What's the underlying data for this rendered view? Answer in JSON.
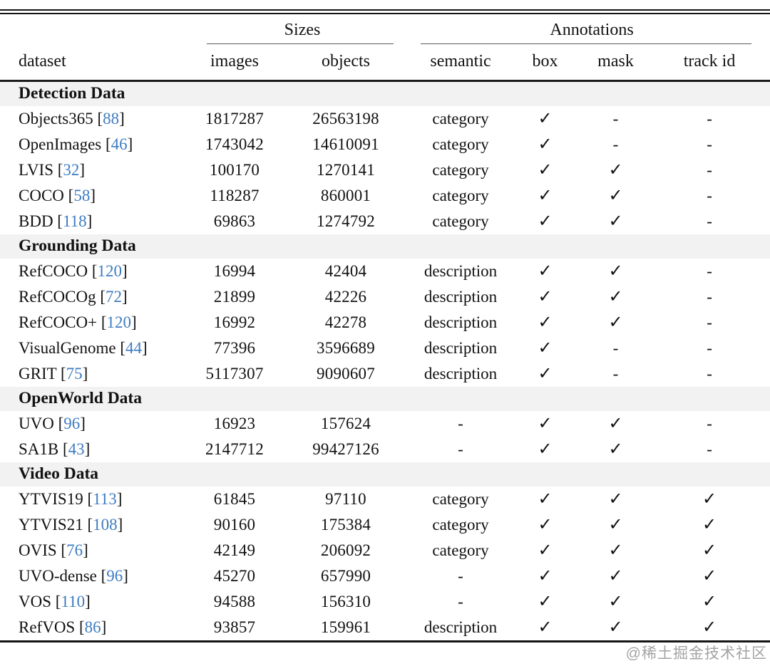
{
  "colors": {
    "ref_link": "#3e7cc1",
    "section_bg": "#f2f2f2",
    "rule_dark": "#141414",
    "rule_mid": "#5a5a5a",
    "watermark_gray": "#a3a3a3"
  },
  "glyphs": {
    "check": "✓",
    "dash": "-",
    "bracket_open": "[",
    "bracket_close": "]"
  },
  "table": {
    "spanners": {
      "sizes": "Sizes",
      "annotations": "Annotations"
    },
    "headers": {
      "dataset": "dataset",
      "images": "images",
      "objects": "objects",
      "semantic": "semantic",
      "box": "box",
      "mask": "mask",
      "track_id": "track id"
    },
    "sections": [
      {
        "title": "Detection Data",
        "rows": [
          {
            "name": "Objects365",
            "ref": "88",
            "images": "1817287",
            "objects": "26563198",
            "semantic": "category",
            "box": "✓",
            "mask": "-",
            "track_id": "-"
          },
          {
            "name": "OpenImages",
            "ref": "46",
            "images": "1743042",
            "objects": "14610091",
            "semantic": "category",
            "box": "✓",
            "mask": "-",
            "track_id": "-"
          },
          {
            "name": "LVIS",
            "ref": "32",
            "images": "100170",
            "objects": "1270141",
            "semantic": "category",
            "box": "✓",
            "mask": "✓",
            "track_id": "-"
          },
          {
            "name": "COCO",
            "ref": "58",
            "images": "118287",
            "objects": "860001",
            "semantic": "category",
            "box": "✓",
            "mask": "✓",
            "track_id": "-"
          },
          {
            "name": "BDD",
            "ref": "118",
            "images": "69863",
            "objects": "1274792",
            "semantic": "category",
            "box": "✓",
            "mask": "✓",
            "track_id": "-"
          }
        ]
      },
      {
        "title": "Grounding Data",
        "rows": [
          {
            "name": "RefCOCO",
            "ref": "120",
            "images": "16994",
            "objects": "42404",
            "semantic": "description",
            "box": "✓",
            "mask": "✓",
            "track_id": "-"
          },
          {
            "name": "RefCOCOg",
            "ref": "72",
            "images": "21899",
            "objects": "42226",
            "semantic": "description",
            "box": "✓",
            "mask": "✓",
            "track_id": "-"
          },
          {
            "name": "RefCOCO+",
            "ref": "120",
            "images": "16992",
            "objects": "42278",
            "semantic": "description",
            "box": "✓",
            "mask": "✓",
            "track_id": "-"
          },
          {
            "name": "VisualGenome",
            "ref": "44",
            "images": "77396",
            "objects": "3596689",
            "semantic": "description",
            "box": "✓",
            "mask": "-",
            "track_id": "-"
          },
          {
            "name": "GRIT",
            "ref": "75",
            "images": "5117307",
            "objects": "9090607",
            "semantic": "description",
            "box": "✓",
            "mask": "-",
            "track_id": "-"
          }
        ]
      },
      {
        "title": "OpenWorld Data",
        "rows": [
          {
            "name": "UVO",
            "ref": "96",
            "images": "16923",
            "objects": "157624",
            "semantic": "-",
            "box": "✓",
            "mask": "✓",
            "track_id": "-"
          },
          {
            "name": "SA1B",
            "ref": "43",
            "images": "2147712",
            "objects": "99427126",
            "semantic": "-",
            "box": "✓",
            "mask": "✓",
            "track_id": "-"
          }
        ]
      },
      {
        "title": "Video Data",
        "rows": [
          {
            "name": "YTVIS19",
            "ref": "113",
            "images": "61845",
            "objects": "97110",
            "semantic": "category",
            "box": "✓",
            "mask": "✓",
            "track_id": "✓"
          },
          {
            "name": "YTVIS21",
            "ref": "108",
            "images": "90160",
            "objects": "175384",
            "semantic": "category",
            "box": "✓",
            "mask": "✓",
            "track_id": "✓"
          },
          {
            "name": "OVIS",
            "ref": "76",
            "images": "42149",
            "objects": "206092",
            "semantic": "category",
            "box": "✓",
            "mask": "✓",
            "track_id": "✓"
          },
          {
            "name": "UVO-dense",
            "ref": "96",
            "images": "45270",
            "objects": "657990",
            "semantic": "-",
            "box": "✓",
            "mask": "✓",
            "track_id": "✓"
          },
          {
            "name": "VOS",
            "ref": "110",
            "images": "94588",
            "objects": "156310",
            "semantic": "-",
            "box": "✓",
            "mask": "✓",
            "track_id": "✓"
          },
          {
            "name": "RefVOS",
            "ref": "86",
            "images": "93857",
            "objects": "159961",
            "semantic": "description",
            "box": "✓",
            "mask": "✓",
            "track_id": "✓"
          }
        ]
      }
    ]
  },
  "watermark": "@稀土掘金技术社区"
}
